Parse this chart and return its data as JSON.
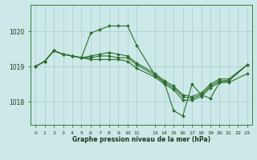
{
  "background_color": "#cce8e8",
  "grid_color": "#aacccc",
  "line_color": "#2d6e2d",
  "title": "Graphe pression niveau de la mer (hPa)",
  "ylim": [
    1017.35,
    1020.75
  ],
  "yticks": [
    1018,
    1019,
    1020
  ],
  "ytick_labels": [
    "1018",
    "1019",
    "1020"
  ],
  "xtick_positions": [
    0,
    1,
    2,
    3,
    4,
    5,
    6,
    7,
    8,
    9,
    10,
    11,
    13,
    14,
    15,
    16,
    17,
    18,
    19,
    20,
    21,
    22,
    23
  ],
  "xtick_labels": [
    "0",
    "1",
    "2",
    "3",
    "4",
    "5",
    "6",
    "7",
    "8",
    "9",
    "10",
    "11",
    "13",
    "14",
    "15",
    "16",
    "17",
    "18",
    "19",
    "20",
    "21",
    "22",
    "23"
  ],
  "series_x": [
    [
      0,
      1,
      2,
      3,
      4,
      5,
      6,
      7,
      8,
      9,
      10,
      11,
      13,
      14,
      15,
      16,
      17,
      18,
      19,
      20,
      21,
      23
    ],
    [
      0,
      1,
      2,
      3,
      4,
      5,
      6,
      7,
      8,
      9,
      10,
      11,
      13,
      14,
      15,
      16,
      17,
      18,
      19,
      20,
      21,
      23
    ],
    [
      0,
      1,
      2,
      3,
      4,
      5,
      6,
      7,
      8,
      9,
      10,
      11,
      13,
      14,
      15,
      16,
      17,
      18,
      19,
      20,
      21,
      23
    ],
    [
      0,
      1,
      2,
      3,
      4,
      5,
      6,
      7,
      8,
      9,
      10,
      11,
      13,
      14,
      15,
      16,
      17,
      18,
      19,
      20,
      21,
      23
    ]
  ],
  "series_y": [
    [
      1019.0,
      1019.15,
      1019.45,
      1019.35,
      1019.3,
      1019.25,
      1019.95,
      1020.05,
      1020.15,
      1020.15,
      1020.15,
      1019.6,
      1018.75,
      1018.55,
      1017.75,
      1017.6,
      1018.5,
      1018.2,
      1018.1,
      1018.55,
      1018.55,
      1018.8
    ],
    [
      1019.0,
      1019.15,
      1019.45,
      1019.35,
      1019.3,
      1019.25,
      1019.3,
      1019.35,
      1019.4,
      1019.35,
      1019.3,
      1019.1,
      1018.8,
      1018.6,
      1018.45,
      1018.2,
      1018.15,
      1018.25,
      1018.5,
      1018.65,
      1018.65,
      1019.05
    ],
    [
      1019.0,
      1019.15,
      1019.45,
      1019.35,
      1019.3,
      1019.25,
      1019.25,
      1019.3,
      1019.3,
      1019.25,
      1019.25,
      1019.05,
      1018.75,
      1018.55,
      1018.4,
      1018.15,
      1018.1,
      1018.2,
      1018.45,
      1018.6,
      1018.6,
      1019.05
    ],
    [
      1019.0,
      1019.15,
      1019.45,
      1019.35,
      1019.3,
      1019.25,
      1019.2,
      1019.2,
      1019.2,
      1019.2,
      1019.15,
      1018.95,
      1018.7,
      1018.5,
      1018.35,
      1018.05,
      1018.05,
      1018.15,
      1018.4,
      1018.55,
      1018.6,
      1019.05
    ]
  ],
  "line_width": 0.8,
  "marker_size": 2.0
}
